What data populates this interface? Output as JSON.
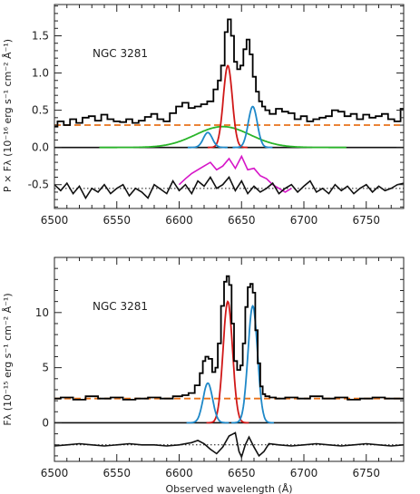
{
  "chart_data": [
    {
      "type": "line",
      "annotation": "NGC 3281",
      "ylabel": "P × Fλ (10⁻¹⁶ erg s⁻¹ cm⁻² Å⁻¹)",
      "xlabel": "",
      "xlim": [
        6500,
        6780
      ],
      "ylim": [
        -0.82,
        1.92
      ],
      "x_ticks": [
        6500,
        6550,
        6600,
        6650,
        6700,
        6750
      ],
      "y_ticks": [
        0.0,
        0.5,
        1.0,
        1.5
      ],
      "y_tick_labels": [
        "0.0",
        "0.5",
        "1.0",
        "1.5"
      ],
      "extra_ticks": [
        -0.5
      ],
      "extra_tick_labels": [
        "-0.5"
      ],
      "zero_line": 0,
      "continuum_level": 0.3,
      "residual_level": -0.55,
      "spectrum": {
        "x": [
          6500,
          6505,
          6510,
          6515,
          6520,
          6525,
          6530,
          6535,
          6540,
          6545,
          6550,
          6555,
          6560,
          6565,
          6570,
          6575,
          6580,
          6585,
          6590,
          6595,
          6600,
          6605,
          6610,
          6615,
          6620,
          6625,
          6630,
          6632,
          6635,
          6638,
          6640,
          6643,
          6645,
          6648,
          6650,
          6653,
          6655,
          6658,
          6660,
          6663,
          6665,
          6668,
          6670,
          6675,
          6680,
          6685,
          6690,
          6695,
          6700,
          6705,
          6710,
          6715,
          6720,
          6725,
          6730,
          6735,
          6740,
          6745,
          6750,
          6755,
          6760,
          6765,
          6770,
          6775,
          6780
        ],
        "y": [
          0.28,
          0.35,
          0.3,
          0.38,
          0.33,
          0.4,
          0.42,
          0.36,
          0.44,
          0.38,
          0.35,
          0.34,
          0.38,
          0.33,
          0.36,
          0.41,
          0.45,
          0.38,
          0.35,
          0.46,
          0.55,
          0.6,
          0.53,
          0.55,
          0.58,
          0.62,
          0.78,
          0.9,
          1.1,
          1.55,
          1.72,
          1.5,
          1.15,
          1.05,
          1.1,
          1.32,
          1.45,
          1.25,
          0.95,
          0.75,
          0.62,
          0.55,
          0.5,
          0.45,
          0.52,
          0.48,
          0.46,
          0.38,
          0.42,
          0.35,
          0.38,
          0.4,
          0.42,
          0.5,
          0.48,
          0.42,
          0.45,
          0.38,
          0.44,
          0.4,
          0.42,
          0.45,
          0.38,
          0.35,
          0.52
        ]
      },
      "components": [
        {
          "color": "#e8731c",
          "style": "dashed",
          "kind": "constant",
          "value": 0.3
        },
        {
          "color": "#2ab52a",
          "kind": "gaussian",
          "center": 6635,
          "sigma": 22,
          "amplitude": 0.28
        },
        {
          "color": "#d01818",
          "kind": "gaussian",
          "center": 6639,
          "sigma": 3.6,
          "amplitude": 1.1
        },
        {
          "color": "#1e88c8",
          "kind": "gaussian",
          "center": 6623,
          "sigma": 3.6,
          "amplitude": 0.2
        },
        {
          "color": "#1e88c8",
          "kind": "gaussian",
          "center": 6659,
          "sigma": 3.6,
          "amplitude": 0.55
        }
      ],
      "residual": {
        "color": "#111111",
        "x": [
          6500,
          6505,
          6510,
          6515,
          6520,
          6525,
          6530,
          6535,
          6540,
          6545,
          6550,
          6555,
          6560,
          6565,
          6570,
          6575,
          6580,
          6585,
          6590,
          6595,
          6600,
          6605,
          6610,
          6615,
          6620,
          6625,
          6630,
          6635,
          6640,
          6645,
          6650,
          6655,
          6660,
          6665,
          6670,
          6675,
          6680,
          6685,
          6690,
          6695,
          6700,
          6705,
          6710,
          6715,
          6720,
          6725,
          6730,
          6735,
          6740,
          6745,
          6750,
          6755,
          6760,
          6765,
          6770,
          6775,
          6780
        ],
        "y": [
          -0.5,
          -0.58,
          -0.48,
          -0.62,
          -0.52,
          -0.68,
          -0.55,
          -0.6,
          -0.5,
          -0.62,
          -0.55,
          -0.5,
          -0.65,
          -0.55,
          -0.6,
          -0.68,
          -0.5,
          -0.56,
          -0.62,
          -0.45,
          -0.58,
          -0.5,
          -0.62,
          -0.45,
          -0.52,
          -0.4,
          -0.55,
          -0.5,
          -0.4,
          -0.58,
          -0.45,
          -0.62,
          -0.52,
          -0.6,
          -0.55,
          -0.48,
          -0.62,
          -0.55,
          -0.5,
          -0.6,
          -0.52,
          -0.45,
          -0.6,
          -0.55,
          -0.62,
          -0.5,
          -0.58,
          -0.52,
          -0.62,
          -0.55,
          -0.5,
          -0.6,
          -0.52,
          -0.58,
          -0.55,
          -0.5,
          -0.48
        ]
      },
      "narrow_only": {
        "color": "#d616c8",
        "x": [
          6600,
          6605,
          6610,
          6615,
          6620,
          6625,
          6630,
          6635,
          6640,
          6645,
          6650,
          6655,
          6660,
          6665,
          6670,
          6675,
          6680,
          6685,
          6690
        ],
        "y": [
          -0.5,
          -0.42,
          -0.35,
          -0.3,
          -0.25,
          -0.2,
          -0.3,
          -0.25,
          -0.15,
          -0.28,
          -0.12,
          -0.3,
          -0.28,
          -0.38,
          -0.42,
          -0.5,
          -0.55,
          -0.6,
          -0.55
        ]
      }
    },
    {
      "type": "line",
      "annotation": "NGC 3281",
      "ylabel": "Fλ (10⁻¹⁵ erg s⁻¹ cm⁻² Å⁻¹)",
      "xlabel": "Observed wavelength (Å)",
      "xlim": [
        6500,
        6780
      ],
      "ylim": [
        -3.5,
        15.0
      ],
      "x_ticks": [
        6500,
        6550,
        6600,
        6650,
        6700,
        6750
      ],
      "y_ticks": [
        0,
        5,
        10
      ],
      "y_tick_labels": [
        "0",
        "5",
        "10"
      ],
      "zero_line": 0,
      "continuum_level": 2.2,
      "residual_level": -2.0,
      "spectrum": {
        "x": [
          6500,
          6510,
          6520,
          6530,
          6540,
          6550,
          6560,
          6570,
          6580,
          6590,
          6600,
          6605,
          6610,
          6615,
          6618,
          6620,
          6622,
          6625,
          6628,
          6630,
          6632,
          6635,
          6637,
          6639,
          6641,
          6643,
          6645,
          6648,
          6650,
          6652,
          6654,
          6656,
          6658,
          6660,
          6662,
          6664,
          6666,
          6668,
          6670,
          6675,
          6680,
          6690,
          6700,
          6710,
          6720,
          6730,
          6740,
          6750,
          6760,
          6770,
          6780
        ],
        "y": [
          2.2,
          2.3,
          2.1,
          2.4,
          2.2,
          2.3,
          2.1,
          2.2,
          2.3,
          2.2,
          2.4,
          2.5,
          2.7,
          3.4,
          4.5,
          5.6,
          6.0,
          5.8,
          4.6,
          5.0,
          7.2,
          10.6,
          12.8,
          13.3,
          12.5,
          9.0,
          5.6,
          4.8,
          5.2,
          7.2,
          10.5,
          12.3,
          12.6,
          11.8,
          8.4,
          5.4,
          3.3,
          2.6,
          2.4,
          2.3,
          2.2,
          2.3,
          2.2,
          2.4,
          2.2,
          2.3,
          2.1,
          2.2,
          2.3,
          2.2,
          2.2
        ]
      },
      "components": [
        {
          "color": "#e8731c",
          "style": "dashed",
          "kind": "constant",
          "value": 2.2
        },
        {
          "color": "#d01818",
          "kind": "gaussian",
          "center": 6639,
          "sigma": 3.8,
          "amplitude": 11.0
        },
        {
          "color": "#1e88c8",
          "kind": "gaussian",
          "center": 6623,
          "sigma": 3.8,
          "amplitude": 3.6
        },
        {
          "color": "#1e88c8",
          "kind": "gaussian",
          "center": 6659,
          "sigma": 3.8,
          "amplitude": 10.6
        }
      ],
      "residual": {
        "color": "#111111",
        "x": [
          6500,
          6510,
          6520,
          6530,
          6540,
          6550,
          6560,
          6570,
          6580,
          6590,
          6600,
          6610,
          6615,
          6620,
          6625,
          6630,
          6635,
          6640,
          6645,
          6648,
          6650,
          6653,
          6656,
          6660,
          6664,
          6668,
          6672,
          6680,
          6690,
          6700,
          6710,
          6720,
          6730,
          6740,
          6750,
          6760,
          6770,
          6780
        ],
        "y": [
          -2.1,
          -2.0,
          -1.9,
          -2.0,
          -2.1,
          -2.0,
          -1.9,
          -2.0,
          -2.0,
          -2.1,
          -2.0,
          -1.8,
          -1.6,
          -1.9,
          -2.4,
          -2.8,
          -2.2,
          -1.2,
          -0.9,
          -2.6,
          -3.1,
          -2.0,
          -1.3,
          -2.2,
          -3.0,
          -2.6,
          -1.9,
          -2.0,
          -2.1,
          -2.0,
          -1.9,
          -2.0,
          -2.1,
          -2.0,
          -1.9,
          -2.0,
          -2.1,
          -2.0
        ]
      }
    }
  ]
}
